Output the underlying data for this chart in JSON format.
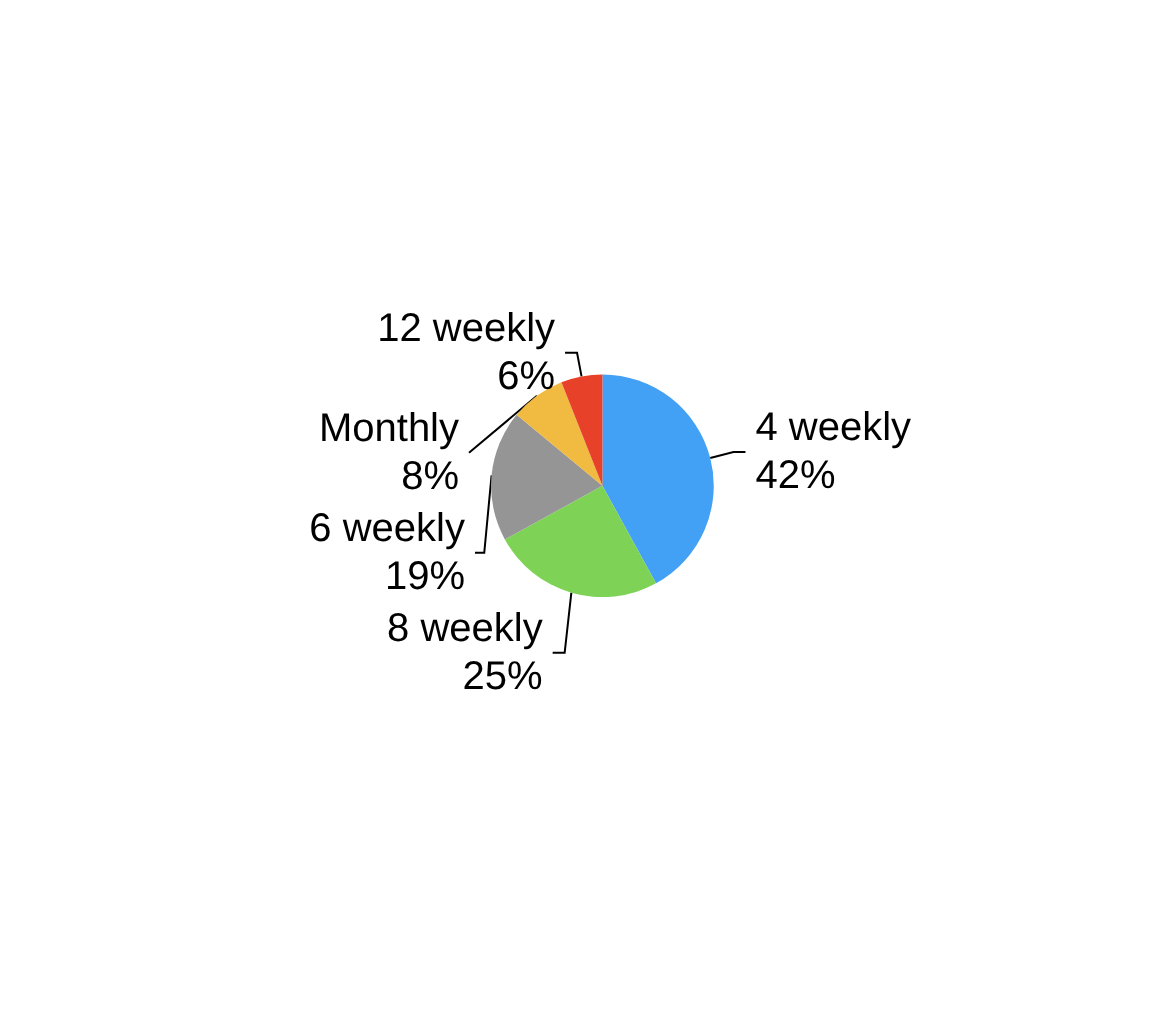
{
  "chart_data": {
    "type": "pie",
    "categories": [
      "4 weekly",
      "8 weekly",
      "6 weekly",
      "Monthly",
      "12 weekly"
    ],
    "values": [
      42,
      25,
      19,
      8,
      6
    ],
    "colors": [
      "#42a0f5",
      "#7ed357",
      "#959595",
      "#f0bb40",
      "#e8412a"
    ],
    "value_labels": [
      "42%",
      "25%",
      "19%",
      "8%",
      "6%"
    ],
    "legend": false
  }
}
